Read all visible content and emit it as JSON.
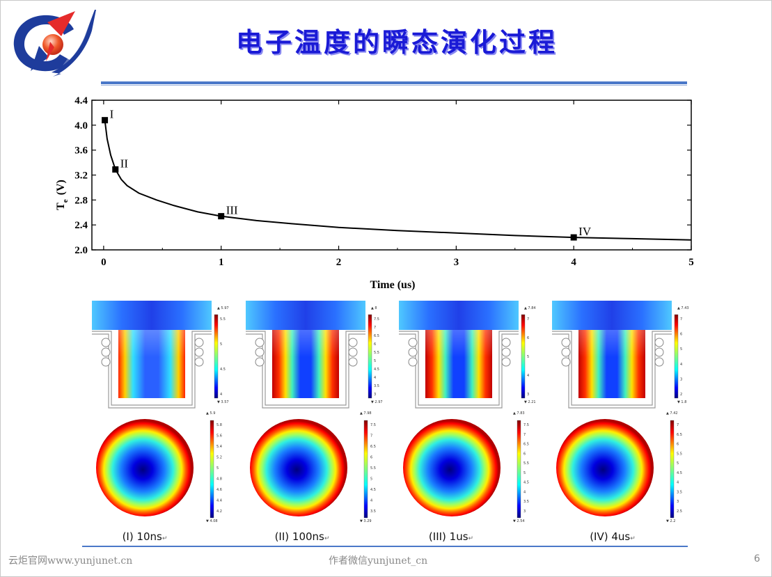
{
  "slide": {
    "title": "电子温度的瞬态演化过程",
    "footer_left": "云炬官网www.yunjunet.cn",
    "footer_mid": "作者微信yunjunet_cn",
    "page_number": "6",
    "accent_color": "#1a1ad6",
    "rule_color": "#4a78c8"
  },
  "chart_data": {
    "type": "line",
    "xlabel": "Time  (us)",
    "ylabel_main": "T",
    "ylabel_sub": "e",
    "ylabel_unit": "(V)",
    "xlim": [
      -0.1,
      5
    ],
    "ylim": [
      2.0,
      4.4
    ],
    "xticks": [
      0,
      1,
      2,
      3,
      4,
      5
    ],
    "yticks": [
      2.0,
      2.4,
      2.8,
      3.2,
      3.6,
      4.0,
      4.4
    ],
    "series": [
      {
        "x": [
          0.01,
          0.03,
          0.06,
          0.1,
          0.15,
          0.2,
          0.3,
          0.45,
          0.6,
          0.8,
          1.0,
          1.3,
          1.6,
          2.0,
          2.5,
          3.0,
          3.5,
          4.0,
          4.5,
          5.0
        ],
        "y": [
          4.08,
          3.78,
          3.52,
          3.29,
          3.13,
          3.03,
          2.91,
          2.8,
          2.71,
          2.61,
          2.54,
          2.47,
          2.42,
          2.36,
          2.31,
          2.27,
          2.23,
          2.2,
          2.18,
          2.16
        ],
        "color": "#000000"
      }
    ],
    "markers": [
      {
        "label": "I",
        "x": 0.01,
        "y": 4.08
      },
      {
        "label": "II",
        "x": 0.1,
        "y": 3.29
      },
      {
        "label": "III",
        "x": 1.0,
        "y": 2.54
      },
      {
        "label": "IV",
        "x": 4.0,
        "y": 2.2
      }
    ]
  },
  "panels": [
    {
      "caption": "(I) 10ns",
      "cross_max": "5.97",
      "cross_min": "3.57",
      "cross_ticks": [
        "5.5",
        "5",
        "4.5",
        "4"
      ],
      "radial_max": "5.9",
      "radial_min": "4.08",
      "radial_ticks": [
        "5.8",
        "5.6",
        "5.4",
        "5.2",
        "5",
        "4.8",
        "4.6",
        "4.4",
        "4.2"
      ]
    },
    {
      "caption": "(II) 100ns",
      "cross_max": "8",
      "cross_min": "2.97",
      "cross_ticks": [
        "7.5",
        "7",
        "6.5",
        "6",
        "5.5",
        "5",
        "4.5",
        "4",
        "3.5",
        "3"
      ],
      "radial_max": "7.98",
      "radial_min": "3.29",
      "radial_ticks": [
        "7.5",
        "7",
        "6.5",
        "6",
        "5.5",
        "5",
        "4.5",
        "4",
        "3.5"
      ]
    },
    {
      "caption": "(III) 1us",
      "cross_max": "7.84",
      "cross_min": "2.21",
      "cross_ticks": [
        "7",
        "6",
        "5",
        "4",
        "3"
      ],
      "radial_max": "7.83",
      "radial_min": "2.54",
      "radial_ticks": [
        "7.5",
        "7",
        "6.5",
        "6",
        "5.5",
        "5",
        "4.5",
        "4",
        "3.5",
        "3"
      ]
    },
    {
      "caption": "(IV) 4us",
      "cross_max": "7.43",
      "cross_min": "1.8",
      "cross_ticks": [
        "7",
        "6",
        "5",
        "4",
        "3",
        "2"
      ],
      "radial_max": "7.42",
      "radial_min": "2.2",
      "radial_ticks": [
        "7",
        "6.5",
        "6",
        "5.5",
        "5",
        "4.5",
        "4",
        "3.5",
        "3",
        "2.5"
      ]
    }
  ]
}
